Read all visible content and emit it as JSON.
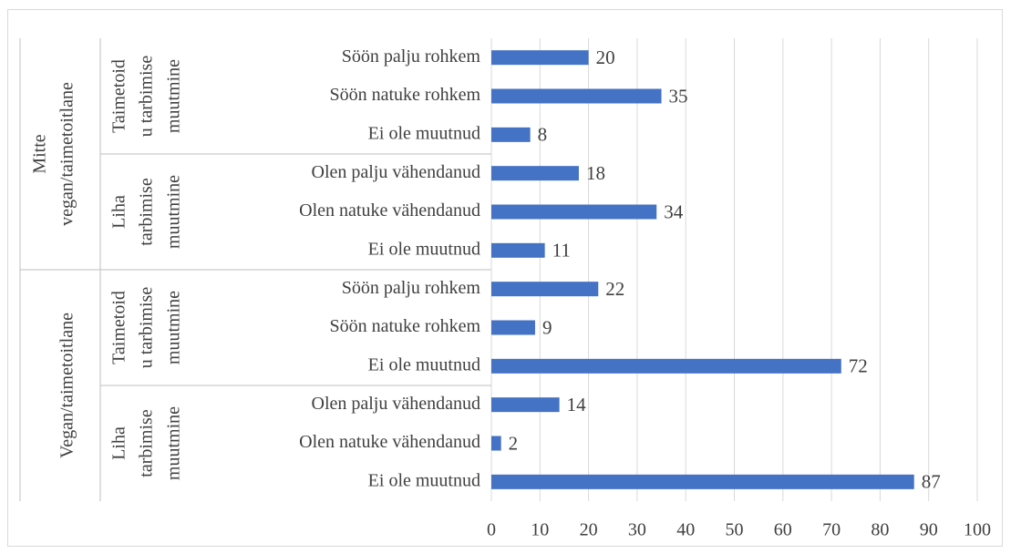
{
  "chart_data": {
    "type": "bar",
    "orientation": "horizontal",
    "color": "#4472c4",
    "xlim": [
      0,
      100
    ],
    "xticks": [
      0,
      10,
      20,
      30,
      40,
      50,
      60,
      70,
      80,
      90,
      100
    ],
    "grid": true,
    "groups": [
      {
        "label_lines": [
          "Mitte",
          "vegan/taimetoitlane"
        ],
        "subgroups": [
          {
            "label_lines": [
              "Taimetoid",
              "u tarbimise",
              "muutmine"
            ],
            "categories": [
              "Söön palju rohkem",
              "Söön natuke rohkem",
              "Ei ole muutnud"
            ],
            "values": [
              20,
              35,
              8
            ]
          },
          {
            "label_lines": [
              "Liha",
              "tarbimise",
              "muutmine"
            ],
            "categories": [
              "Olen palju vähendanud",
              "Olen natuke vähendanud",
              "Ei ole muutnud"
            ],
            "values": [
              18,
              34,
              11
            ]
          }
        ]
      },
      {
        "label_lines": [
          "Vegan/taimetoitlane"
        ],
        "subgroups": [
          {
            "label_lines": [
              "Taimetoid",
              "u tarbimise",
              "muutmine"
            ],
            "categories": [
              "Söön palju rohkem",
              "Söön natuke rohkem",
              "Ei ole muutnud"
            ],
            "values": [
              22,
              9,
              72
            ]
          },
          {
            "label_lines": [
              "Liha",
              "tarbimise",
              "muutmine"
            ],
            "categories": [
              "Olen palju vähendanud",
              "Olen natuke vähendanud",
              "Ei ole muutnud"
            ],
            "values": [
              14,
              2,
              87
            ]
          }
        ]
      }
    ]
  }
}
